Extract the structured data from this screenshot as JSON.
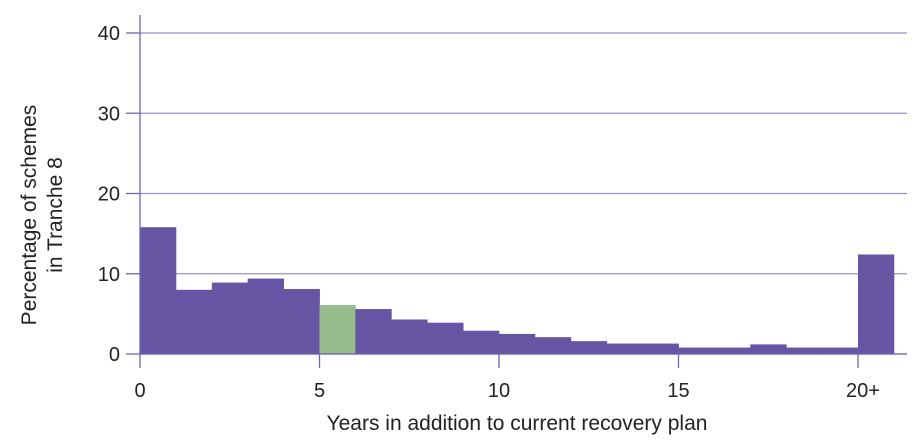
{
  "chart_data": {
    "type": "bar",
    "xlabel": "Years in addition to current recovery plan",
    "ylabel_lines": [
      "Percentage of schemes",
      "in Tranche 8"
    ],
    "ylim": [
      0,
      40
    ],
    "yticks": [
      0,
      10,
      20,
      30,
      40
    ],
    "xlim": [
      0,
      21
    ],
    "xticks": [
      {
        "value": 0,
        "label": "0"
      },
      {
        "value": 5,
        "label": "5"
      },
      {
        "value": 10,
        "label": "10"
      },
      {
        "value": 15,
        "label": "15"
      },
      {
        "value": 20,
        "label": "20+"
      }
    ],
    "bins": [
      {
        "x0": 0,
        "x1": 1,
        "value": 15.8
      },
      {
        "x0": 1,
        "x1": 2,
        "value": 8.0
      },
      {
        "x0": 2,
        "x1": 3,
        "value": 8.9
      },
      {
        "x0": 3,
        "x1": 4,
        "value": 9.4
      },
      {
        "x0": 4,
        "x1": 5,
        "value": 8.1
      },
      {
        "x0": 5,
        "x1": 6,
        "value": 6.1,
        "highlight": true
      },
      {
        "x0": 6,
        "x1": 7,
        "value": 5.6
      },
      {
        "x0": 7,
        "x1": 8,
        "value": 4.3
      },
      {
        "x0": 8,
        "x1": 9,
        "value": 3.9
      },
      {
        "x0": 9,
        "x1": 10,
        "value": 2.9
      },
      {
        "x0": 10,
        "x1": 11,
        "value": 2.5
      },
      {
        "x0": 11,
        "x1": 12,
        "value": 2.1
      },
      {
        "x0": 12,
        "x1": 13,
        "value": 1.6
      },
      {
        "x0": 13,
        "x1": 14,
        "value": 1.3
      },
      {
        "x0": 14,
        "x1": 15,
        "value": 1.3
      },
      {
        "x0": 15,
        "x1": 16,
        "value": 0.8
      },
      {
        "x0": 16,
        "x1": 17,
        "value": 0.8
      },
      {
        "x0": 17,
        "x1": 18,
        "value": 1.2
      },
      {
        "x0": 18,
        "x1": 19,
        "value": 0.8
      },
      {
        "x0": 19,
        "x1": 20,
        "value": 0.8
      },
      {
        "x0": 20,
        "x1": 21,
        "value": 12.4
      }
    ],
    "grid": true,
    "colors": {
      "bar": "#6655a3",
      "highlight": "#98bb8d",
      "grid": "#9991c8",
      "axis": "#6e64b0"
    }
  }
}
